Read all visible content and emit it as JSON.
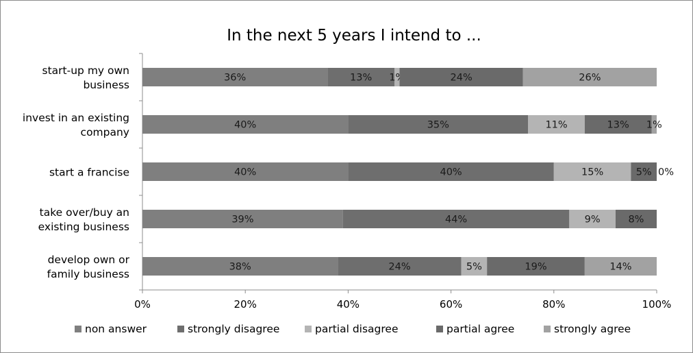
{
  "chart_data": {
    "type": "bar",
    "orientation": "horizontal",
    "stacked": true,
    "percent_stacked": true,
    "title": "In the next 5 years I intend to ...",
    "categories": [
      [
        "start-up my own",
        "business"
      ],
      [
        "invest in an existing",
        "company"
      ],
      [
        "start a francise"
      ],
      [
        "take over/buy an",
        "existing business"
      ],
      [
        "develop own or",
        "family business"
      ]
    ],
    "series": [
      {
        "name": "non answer",
        "values": [
          36,
          40,
          40,
          39,
          38
        ],
        "labels": [
          "36%",
          "40%",
          "40%",
          "39%",
          "38%"
        ]
      },
      {
        "name": "strongly disagree",
        "values": [
          13,
          35,
          40,
          44,
          24
        ],
        "labels": [
          "13%",
          "35%",
          "40%",
          "44%",
          "24%"
        ]
      },
      {
        "name": "partial disagree",
        "values": [
          1,
          11,
          15,
          9,
          5
        ],
        "labels": [
          "1%",
          "11%",
          "15%",
          "9%",
          "5%"
        ]
      },
      {
        "name": "partial agree",
        "values": [
          24,
          13,
          5,
          8,
          19
        ],
        "labels": [
          "24%",
          "13%",
          "5%",
          "8%",
          "19%"
        ]
      },
      {
        "name": "strongly agree",
        "values": [
          26,
          1,
          0,
          0,
          14
        ],
        "labels": [
          "26%",
          "1%",
          "0%",
          "",
          "14%"
        ]
      }
    ],
    "colors": [
      "#7f7f7f",
      "#6e6e6e",
      "#b4b4b4",
      "#6a6a6a",
      "#a2a2a2"
    ],
    "xlim": [
      0,
      100
    ],
    "xticks": [
      0,
      20,
      40,
      60,
      80,
      100
    ],
    "xtick_labels": [
      "0%",
      "20%",
      "40%",
      "60%",
      "80%",
      "100%"
    ],
    "xlabel": "",
    "ylabel": "",
    "grid": false,
    "legend_position": "bottom"
  }
}
